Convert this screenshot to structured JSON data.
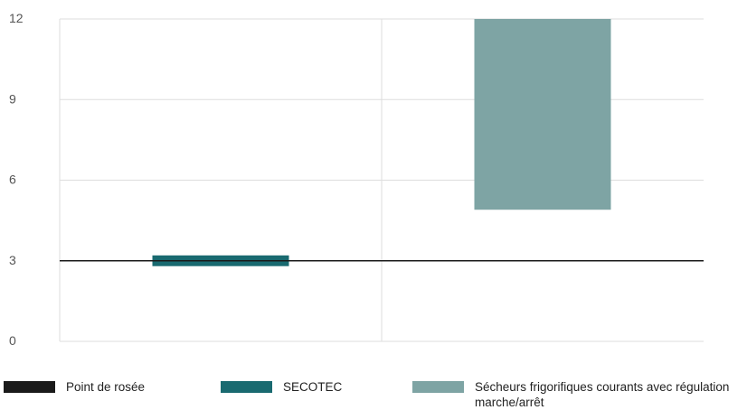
{
  "chart_data": {
    "type": "range-bar",
    "title": "",
    "xlabel": "",
    "ylabel": "",
    "ylim": [
      0,
      12
    ],
    "yticks": [
      0,
      3,
      6,
      9,
      12
    ],
    "grid": true,
    "legend_position": "bottom",
    "reference_line": {
      "name": "Point de rosée",
      "value": 3,
      "color": "#1a1a1a"
    },
    "series": [
      {
        "name": "SECOTEC",
        "category_index": 0,
        "low": 2.8,
        "high": 3.2,
        "color": "#196a70"
      },
      {
        "name": "Sécheurs frigorifiques courants avec régulation marche/arrêt",
        "category_index": 1,
        "low": 4.9,
        "high": 12,
        "color": "#7ea4a4"
      }
    ]
  },
  "legend": [
    {
      "label": "Point de rosée",
      "color": "#1a1a1a"
    },
    {
      "label": "SECOTEC",
      "color": "#196a70"
    },
    {
      "label": "Sécheurs frigorifiques courants avec régulation marche/arrêt",
      "color": "#7ea4a4"
    }
  ]
}
